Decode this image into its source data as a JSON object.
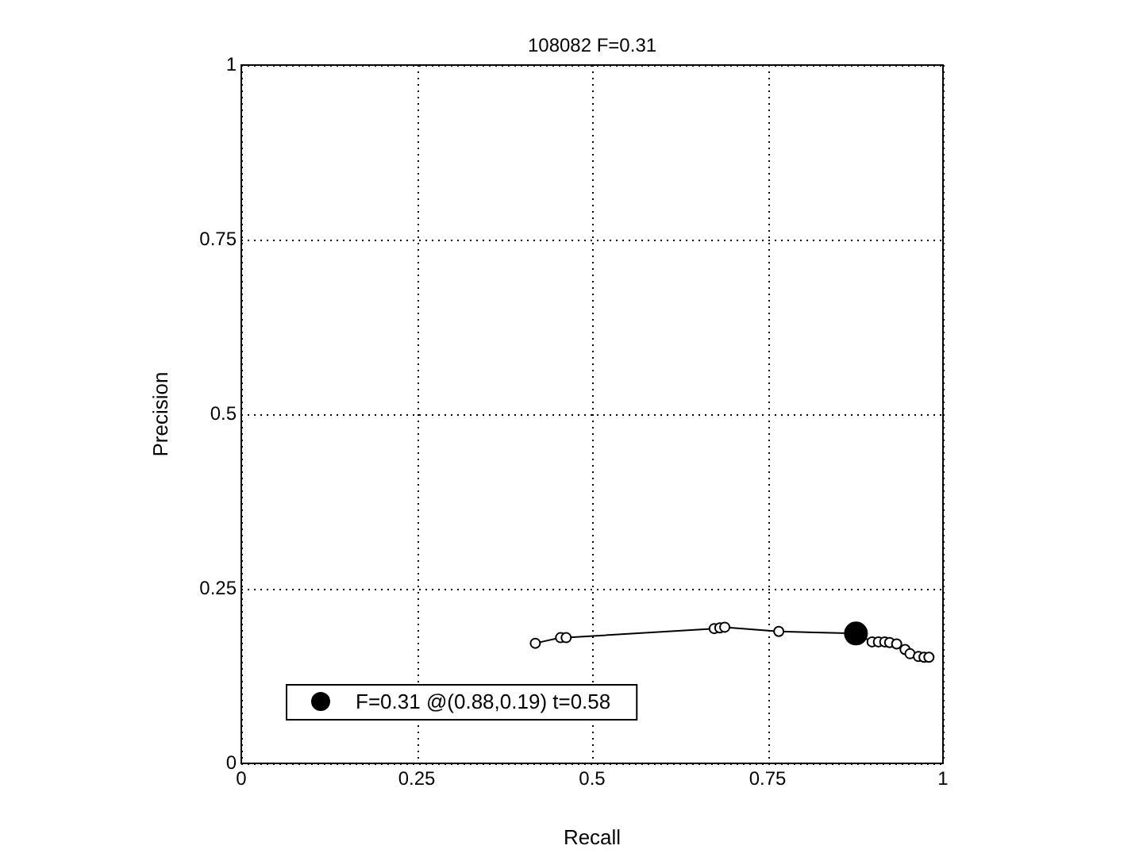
{
  "chart_data": {
    "type": "line",
    "title": "108082 F=0.31",
    "xlabel": "Recall",
    "ylabel": "Precision",
    "xlim": [
      0,
      1
    ],
    "ylim": [
      0,
      1
    ],
    "xticks": [
      0,
      0.25,
      0.5,
      0.75,
      1
    ],
    "yticks": [
      0,
      0.25,
      0.5,
      0.75,
      1
    ],
    "grid": true,
    "legend": "bottom left",
    "marker": "circle",
    "line_style": "solid",
    "series": [
      {
        "color": "#000000",
        "x": [
          0.419,
          0.455,
          0.463,
          0.674,
          0.682,
          0.689,
          0.766,
          0.876,
          0.899,
          0.908,
          0.917,
          0.924,
          0.934,
          0.946,
          0.953,
          0.965,
          0.973,
          0.98
        ],
        "values": [
          0.172,
          0.18,
          0.18,
          0.193,
          0.194,
          0.195,
          0.189,
          0.186,
          0.174,
          0.174,
          0.174,
          0.173,
          0.171,
          0.163,
          0.157,
          0.153,
          0.152,
          0.152
        ]
      },
      {
        "type": "scatter",
        "name": "F=0.31 @(0.88,0.19) t=0.58",
        "color": "#000000",
        "x": [
          0.876
        ],
        "values": [
          0.186
        ]
      }
    ]
  }
}
